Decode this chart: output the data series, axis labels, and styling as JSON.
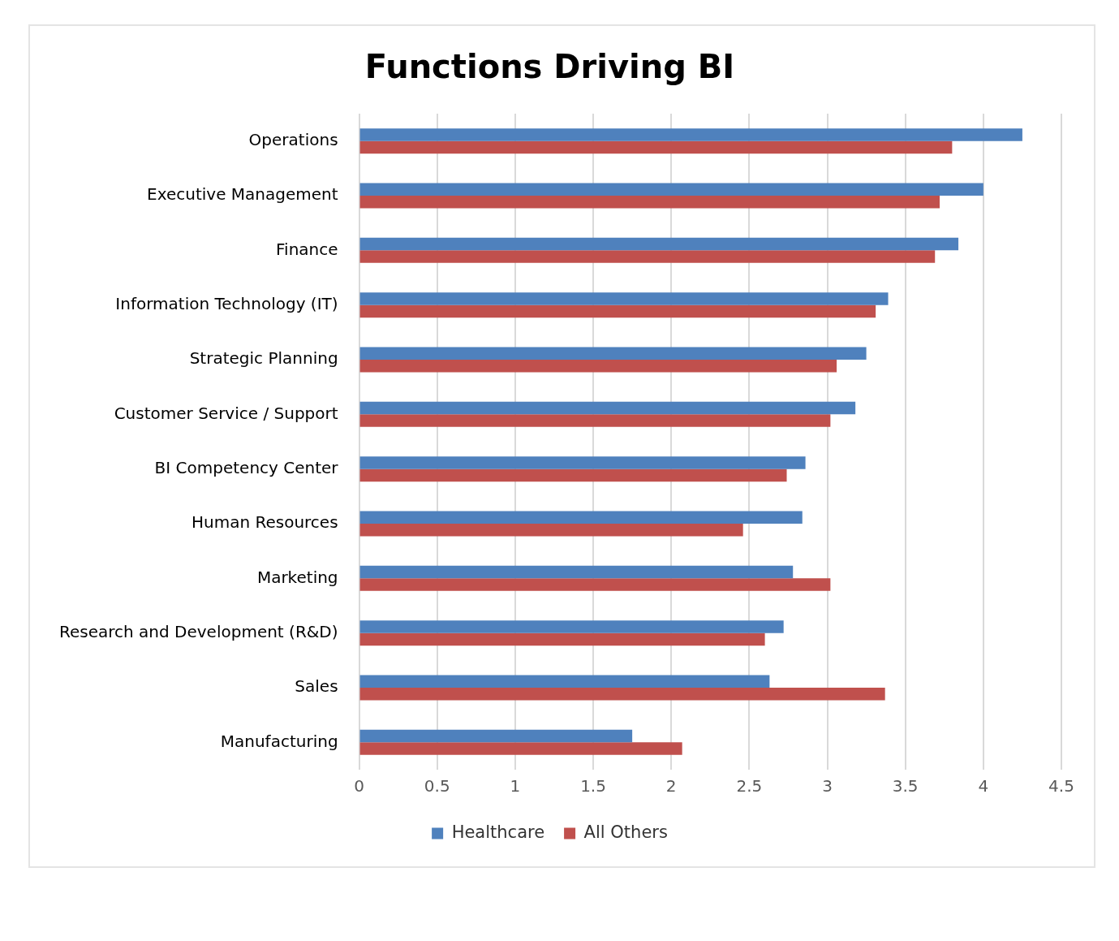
{
  "chart_data": {
    "type": "bar",
    "orientation": "horizontal",
    "title": "Functions Driving BI",
    "categories": [
      "Operations",
      "Executive Management",
      "Finance",
      "Information Technology (IT)",
      "Strategic Planning",
      "Customer Service / Support",
      "BI Competency Center",
      "Human Resources",
      "Marketing",
      "Research and Development (R&D)",
      "Sales",
      "Manufacturing"
    ],
    "series": [
      {
        "name": "Healthcare",
        "color": "#4f81bd",
        "values": [
          4.25,
          4.0,
          3.84,
          3.39,
          3.25,
          3.18,
          2.86,
          2.84,
          2.78,
          2.72,
          2.63,
          1.75
        ]
      },
      {
        "name": "All Others",
        "color": "#c0504d",
        "values": [
          3.8,
          3.72,
          3.69,
          3.31,
          3.06,
          3.02,
          2.74,
          2.46,
          3.02,
          2.6,
          3.37,
          2.07
        ]
      }
    ],
    "xlim": [
      0,
      4.5
    ],
    "xticks": [
      0,
      0.5,
      1,
      1.5,
      2,
      2.5,
      3,
      3.5,
      4,
      4.5
    ],
    "grid": "x",
    "legend": "bottom"
  }
}
